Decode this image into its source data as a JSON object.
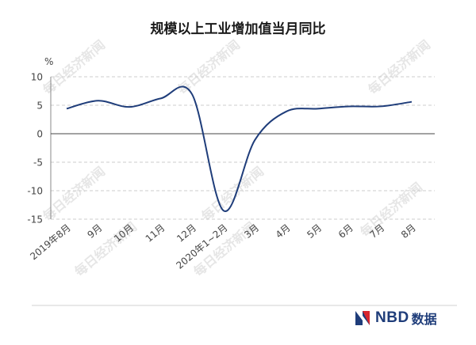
{
  "chart_data": {
    "type": "line",
    "title": "规模以上工业增加值当月同比",
    "ylabel": "%",
    "xlabel": "",
    "ylim": [
      -15,
      10
    ],
    "yticks": [
      10,
      5,
      0,
      -5,
      -10,
      -15
    ],
    "grid": true,
    "categories": [
      "2019年8月",
      "9月",
      "10月",
      "11月",
      "12月",
      "2020年1~2月",
      "3月",
      "4月",
      "5月",
      "6月",
      "7月",
      "8月"
    ],
    "series": [
      {
        "color": "#1f3d7a",
        "values": [
          4.4,
          5.8,
          4.7,
          6.2,
          6.9,
          -13.5,
          -1.1,
          3.9,
          4.4,
          4.8,
          4.8,
          5.6
        ]
      }
    ]
  },
  "watermark": "每日经济新闻",
  "logo": {
    "text": "NBD",
    "cn": "数据"
  }
}
